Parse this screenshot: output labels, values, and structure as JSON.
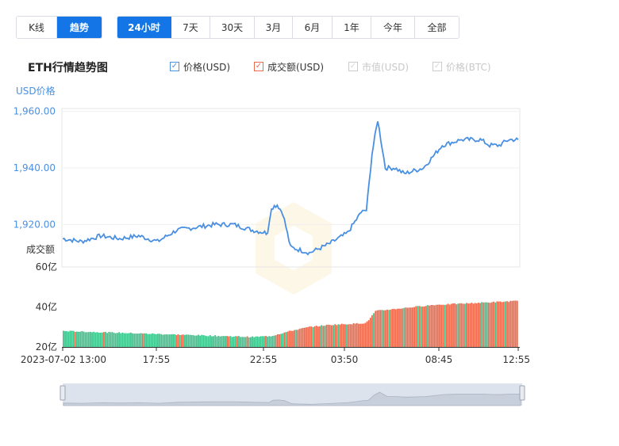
{
  "type_tabs": [
    {
      "label": "K线",
      "active": false
    },
    {
      "label": "趋势",
      "active": true
    }
  ],
  "range_tabs": [
    {
      "label": "24小时",
      "active": true
    },
    {
      "label": "7天",
      "active": false
    },
    {
      "label": "30天",
      "active": false
    },
    {
      "label": "3月",
      "active": false
    },
    {
      "label": "6月",
      "active": false
    },
    {
      "label": "1年",
      "active": false
    },
    {
      "label": "今年",
      "active": false
    },
    {
      "label": "全部",
      "active": false
    }
  ],
  "title": "ETH行情趋势图",
  "legend": [
    {
      "label": "价格(USD)",
      "checked": true,
      "color": "#4a90e2"
    },
    {
      "label": "成交额(USD)",
      "checked": true,
      "color": "#ef6a4c"
    },
    {
      "label": "市值(USD)",
      "checked": false,
      "color": "#cccccc"
    },
    {
      "label": "价格(BTC)",
      "checked": false,
      "color": "#cccccc"
    }
  ],
  "colors": {
    "price_line": "#4a90e2",
    "volume_up": "#ef6a4c",
    "volume_down": "#3cc48c",
    "active_tab": "#1476e6"
  },
  "chart_data": {
    "type": "line",
    "price_axis_title": "USD价格",
    "price_ticks": [
      "1,960.00",
      "1,940.00",
      "1,920.00"
    ],
    "price_ylim": [
      1905,
      1961
    ],
    "volume_axis_title": "成交额",
    "volume_ticks": [
      "60亿",
      "40亿",
      "20亿"
    ],
    "volume_ylim": [
      20,
      60
    ],
    "x_ticks": [
      "2023-07-02 13:00",
      "17:55",
      "22:55",
      "03:50",
      "08:45",
      "12:55"
    ],
    "price_series": {
      "name": "价格(USD)",
      "x": [
        0,
        1,
        2,
        3,
        4,
        5,
        6,
        7,
        8,
        9,
        10,
        10.8,
        11,
        11.3,
        11.6,
        12,
        13,
        14,
        15,
        15.8,
        16,
        16.3,
        16.6,
        17,
        17.5,
        18,
        19,
        20,
        20.5,
        21,
        21.1,
        21.5,
        22,
        22.5,
        23,
        23.5,
        24
      ],
      "y": [
        1915,
        1914,
        1916,
        1915,
        1916,
        1914,
        1918,
        1919,
        1920,
        1920,
        1918,
        1917,
        1926,
        1927,
        1924,
        1912,
        1910,
        1913,
        1917,
        1925,
        1925,
        1945,
        1957,
        1940,
        1940,
        1938,
        1940,
        1948,
        1949,
        1950,
        1950,
        1950,
        1950,
        1948,
        1948,
        1950,
        1950
      ]
    },
    "volume_series": {
      "name": "成交额(USD)",
      "x_range": [
        0,
        24
      ],
      "start": 28,
      "segments": [
        {
          "until": 5,
          "to": 26.5
        },
        {
          "until": 10,
          "to": 25
        },
        {
          "until": 11,
          "to": 25.5
        },
        {
          "until": 12,
          "to": 28
        },
        {
          "until": 13,
          "to": 30
        },
        {
          "until": 14,
          "to": 31
        },
        {
          "until": 16,
          "to": 32
        },
        {
          "until": 16.5,
          "to": 38
        },
        {
          "until": 19.5,
          "to": 41
        },
        {
          "until": 24,
          "to": 43
        }
      ]
    }
  },
  "navigator": {
    "x_range": [
      0,
      24
    ]
  }
}
